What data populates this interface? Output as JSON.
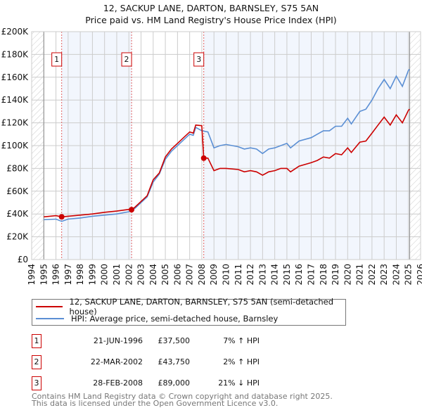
{
  "title": "12, SACKUP LANE, DARTON, BARNSLEY, S75 5AN",
  "subtitle": "Price paid vs. HM Land Registry's House Price Index (HPI)",
  "chart_data": {
    "type": "line",
    "title": "12, SACKUP LANE, DARTON, BARNSLEY, S75 5AN — Price paid vs. HM Land Registry's House Price Index (HPI)",
    "xlim": [
      1994,
      2026
    ],
    "ylim": [
      0,
      200000
    ],
    "x_ticks": [
      "1994",
      "1995",
      "1996",
      "1997",
      "1998",
      "1999",
      "2000",
      "2001",
      "2002",
      "2003",
      "2004",
      "2005",
      "2006",
      "2007",
      "2008",
      "2009",
      "2010",
      "2011",
      "2012",
      "2013",
      "2014",
      "2015",
      "2016",
      "2017",
      "2018",
      "2019",
      "2020",
      "2021",
      "2022",
      "2023",
      "2024",
      "2025",
      "2026"
    ],
    "y_ticks": [
      {
        "v": 0,
        "label": "£0"
      },
      {
        "v": 20000,
        "label": "£20K"
      },
      {
        "v": 40000,
        "label": "£40K"
      },
      {
        "v": 60000,
        "label": "£60K"
      },
      {
        "v": 80000,
        "label": "£80K"
      },
      {
        "v": 100000,
        "label": "£100K"
      },
      {
        "v": 120000,
        "label": "£120K"
      },
      {
        "v": 140000,
        "label": "£140K"
      },
      {
        "v": 160000,
        "label": "£160K"
      },
      {
        "v": 180000,
        "label": "£180K"
      },
      {
        "v": 200000,
        "label": "£200K"
      }
    ],
    "grid": true,
    "data_range": [
      1995,
      2025.1
    ],
    "series": [
      {
        "name": "12, SACKUP LANE, DARTON, BARNSLEY, S75 5AN (semi-detached house)",
        "color": "#cc0000",
        "x": [
          1995,
          1996,
          1996.47,
          1997,
          1998,
          1999,
          2000,
          2001,
          2002,
          2002.22,
          2002.5,
          2003,
          2003.5,
          2004,
          2004.5,
          2005,
          2005.5,
          2006,
          2006.5,
          2007,
          2007.3,
          2007.5,
          2008,
          2008.16,
          2008.5,
          2009,
          2009.5,
          2010,
          2011,
          2011.5,
          2012,
          2012.5,
          2013,
          2013.5,
          2014,
          2014.5,
          2015,
          2015.3,
          2016,
          2017,
          2017.5,
          2018,
          2018.5,
          2019,
          2019.5,
          2020,
          2020.3,
          2021,
          2021.5,
          2022,
          2022.5,
          2023,
          2023.5,
          2024,
          2024.5,
          2025,
          2025.1
        ],
        "y": [
          37500,
          38500,
          37500,
          38000,
          39000,
          40000,
          41500,
          42500,
          44000,
          43750,
          46000,
          51000,
          56000,
          70000,
          76000,
          90000,
          97000,
          102000,
          107000,
          112000,
          111000,
          118000,
          117500,
          89000,
          89000,
          78000,
          80000,
          80000,
          79000,
          77000,
          78000,
          77000,
          74000,
          77000,
          78000,
          80000,
          80000,
          77000,
          82000,
          85000,
          87000,
          90000,
          89000,
          93000,
          92000,
          98000,
          94000,
          103000,
          104000,
          111000,
          118000,
          125000,
          118000,
          127000,
          120000,
          131000,
          132000
        ]
      },
      {
        "name": "HPI: Average price, semi-detached house, Barnsley",
        "color": "#5b8fd4",
        "x": [
          1995,
          1996,
          1996.47,
          1997,
          1998,
          1999,
          2000,
          2001,
          2002,
          2002.5,
          2003,
          2003.5,
          2004,
          2004.5,
          2005,
          2005.5,
          2006,
          2006.5,
          2007,
          2007.3,
          2007.5,
          2008,
          2008.5,
          2009,
          2009.5,
          2010,
          2011,
          2011.5,
          2012,
          2012.5,
          2013,
          2013.5,
          2014,
          2014.5,
          2015,
          2015.3,
          2016,
          2017,
          2017.5,
          2018,
          2018.5,
          2019,
          2019.5,
          2020,
          2020.3,
          2021,
          2021.5,
          2022,
          2022.5,
          2023,
          2023.5,
          2024,
          2024.5,
          2025,
          2025.1
        ],
        "y": [
          35000,
          35500,
          33500,
          35500,
          36500,
          38000,
          39000,
          40000,
          42000,
          45000,
          50000,
          55000,
          68000,
          75000,
          88000,
          95000,
          100000,
          105000,
          110000,
          109000,
          116000,
          113000,
          112000,
          98000,
          100000,
          101000,
          99000,
          97000,
          98000,
          97000,
          93000,
          97000,
          98000,
          100000,
          102000,
          98000,
          104000,
          107000,
          110000,
          113000,
          113000,
          117000,
          117000,
          124000,
          119000,
          130000,
          132000,
          140000,
          150000,
          158000,
          150000,
          161000,
          152000,
          166000,
          167000
        ]
      }
    ],
    "sales": [
      {
        "n": "1",
        "x": 1996.47,
        "y": 37500,
        "date": "21-JUN-1996",
        "price": "£37,500",
        "hpi": "7% ↑ HPI"
      },
      {
        "n": "2",
        "x": 2002.22,
        "y": 43750,
        "date": "22-MAR-2002",
        "price": "£43,750",
        "hpi": "2% ↑ HPI"
      },
      {
        "n": "3",
        "x": 2008.16,
        "y": 89000,
        "date": "28-FEB-2008",
        "price": "£89,000",
        "hpi": "21% ↓ HPI"
      }
    ]
  },
  "legend": {
    "property": "12, SACKUP LANE, DARTON, BARNSLEY, S75 5AN (semi-detached house)",
    "hpi": "HPI: Average price, semi-detached house, Barnsley",
    "property_color": "#cc0000",
    "hpi_color": "#5b8fd4"
  },
  "footer": {
    "line1": "Contains HM Land Registry data © Crown copyright and database right 2025.",
    "line2": "This data is licensed under the Open Government Licence v3.0."
  }
}
